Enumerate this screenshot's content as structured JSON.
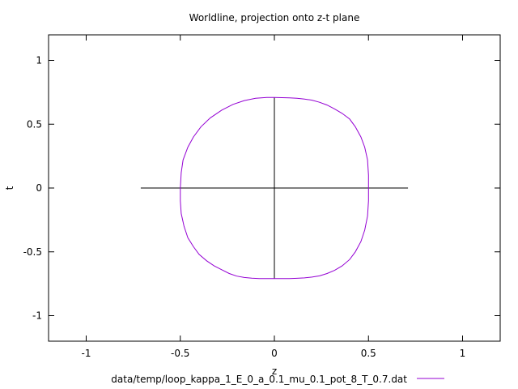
{
  "chart_data": {
    "type": "line",
    "title": "Worldline, projection onto z-t plane",
    "xlabel": "z",
    "ylabel": "t",
    "xlim": [
      -1.2,
      1.2
    ],
    "ylim": [
      -1.2,
      1.2
    ],
    "xticks": [
      -1,
      -0.5,
      0,
      0.5,
      1
    ],
    "xtick_labels": [
      "-1",
      "-0.5",
      "0",
      "0.5",
      "1"
    ],
    "yticks": [
      -1,
      -0.5,
      0,
      0.5,
      1
    ],
    "ytick_labels": [
      "-1",
      "-0.5",
      "0",
      "0.5",
      "1"
    ],
    "grid": false,
    "legend_position": "bottom",
    "series": [
      {
        "name": "data/temp/loop_kappa_1_E_0_a_0.1_mu_0.1_pot_8_T_0.7.dat",
        "color": "#9400d3",
        "points": [
          [
            0.0,
            0.71
          ],
          [
            0.04,
            0.708
          ],
          [
            0.08,
            0.706
          ],
          [
            0.12,
            0.703
          ],
          [
            0.16,
            0.697
          ],
          [
            0.2,
            0.688
          ],
          [
            0.24,
            0.672
          ],
          [
            0.28,
            0.65
          ],
          [
            0.32,
            0.62
          ],
          [
            0.36,
            0.585
          ],
          [
            0.4,
            0.54
          ],
          [
            0.43,
            0.48
          ],
          [
            0.46,
            0.4
          ],
          [
            0.48,
            0.32
          ],
          [
            0.495,
            0.22
          ],
          [
            0.5,
            0.1
          ],
          [
            0.5,
            0.0
          ],
          [
            0.5,
            -0.1
          ],
          [
            0.495,
            -0.22
          ],
          [
            0.48,
            -0.33
          ],
          [
            0.46,
            -0.42
          ],
          [
            0.43,
            -0.5
          ],
          [
            0.4,
            -0.56
          ],
          [
            0.36,
            -0.61
          ],
          [
            0.32,
            -0.645
          ],
          [
            0.28,
            -0.67
          ],
          [
            0.24,
            -0.688
          ],
          [
            0.2,
            -0.698
          ],
          [
            0.16,
            -0.704
          ],
          [
            0.12,
            -0.707
          ],
          [
            0.08,
            -0.709
          ],
          [
            0.04,
            -0.71
          ],
          [
            0.0,
            -0.71
          ],
          [
            -0.04,
            -0.71
          ],
          [
            -0.08,
            -0.709
          ],
          [
            -0.12,
            -0.706
          ],
          [
            -0.16,
            -0.701
          ],
          [
            -0.2,
            -0.69
          ],
          [
            -0.24,
            -0.67
          ],
          [
            -0.28,
            -0.64
          ],
          [
            -0.32,
            -0.61
          ],
          [
            -0.36,
            -0.57
          ],
          [
            -0.4,
            -0.52
          ],
          [
            -0.43,
            -0.46
          ],
          [
            -0.46,
            -0.39
          ],
          [
            -0.48,
            -0.3
          ],
          [
            -0.495,
            -0.2
          ],
          [
            -0.5,
            -0.1
          ],
          [
            -0.5,
            0.0
          ],
          [
            -0.495,
            0.12
          ],
          [
            -0.485,
            0.22
          ],
          [
            -0.46,
            0.32
          ],
          [
            -0.43,
            0.4
          ],
          [
            -0.39,
            0.48
          ],
          [
            -0.34,
            0.55
          ],
          [
            -0.28,
            0.61
          ],
          [
            -0.22,
            0.655
          ],
          [
            -0.16,
            0.685
          ],
          [
            -0.1,
            0.703
          ],
          [
            -0.04,
            0.709
          ],
          [
            0.0,
            0.71
          ]
        ]
      }
    ],
    "reference_lines": [
      {
        "color": "#000000",
        "x": [
          -0.71,
          0.71
        ],
        "y": [
          0,
          0
        ]
      },
      {
        "color": "#000000",
        "x": [
          0,
          0
        ],
        "y": [
          -0.71,
          0.71
        ]
      }
    ]
  }
}
